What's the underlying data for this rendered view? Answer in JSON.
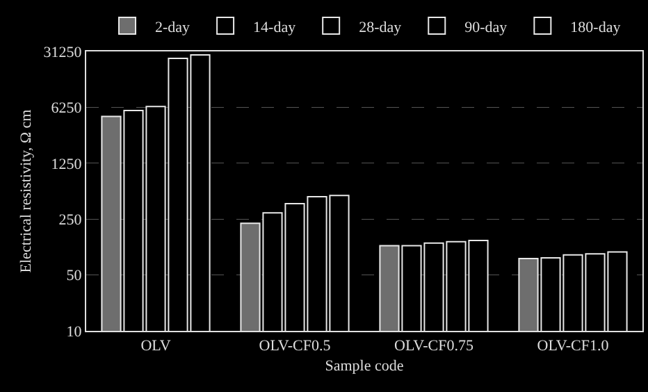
{
  "chart_data": {
    "type": "bar",
    "xlabel": "Sample code",
    "ylabel": "Electrical resistivity, Ω cm",
    "categories": [
      "OLV",
      "OLV-CF0.5",
      "OLV-CF0.75",
      "OLV-CF1.0"
    ],
    "series": [
      {
        "name": "2-day",
        "color": "#6e6e6e",
        "values": [
          4800,
          221,
          116,
          80
        ]
      },
      {
        "name": "14-day",
        "color": "#e8e8e8",
        "values": [
          5700,
          299,
          116,
          82
        ]
      },
      {
        "name": "28-day",
        "color": "#e8e8e8",
        "values": [
          6400,
          389,
          125,
          89
        ]
      },
      {
        "name": "90-day",
        "color": "#e8e8e8",
        "values": [
          25600,
          476,
          130,
          92
        ]
      },
      {
        "name": "180-day",
        "color": "#e8e8e8",
        "values": [
          28300,
          494,
          135,
          97
        ]
      }
    ],
    "log": true,
    "ylim": [
      10,
      31250
    ],
    "yticks": [
      10,
      50,
      250,
      1250,
      6250,
      31250
    ],
    "grid": "y",
    "legend": "top"
  }
}
